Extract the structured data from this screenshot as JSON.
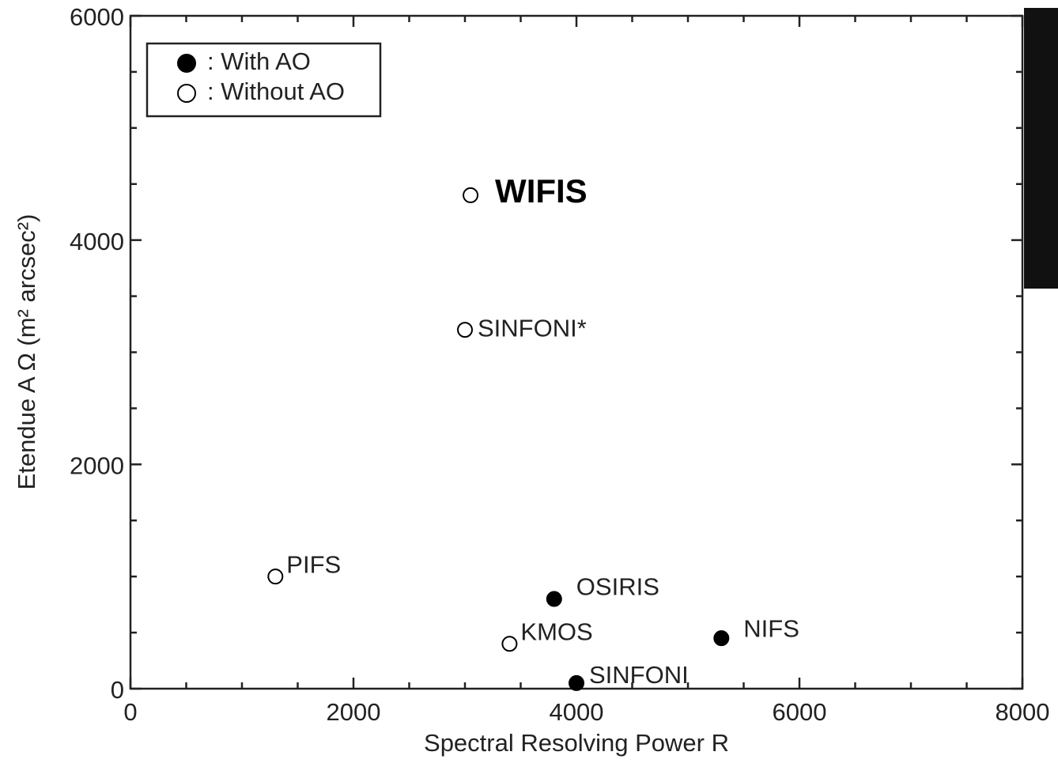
{
  "chart_data": {
    "type": "scatter",
    "x_label": "Spectral Resolving Power R",
    "y_label": "Etendue A Ω (m² arcsec²)",
    "xlim": [
      0,
      8000
    ],
    "ylim": [
      0,
      6000
    ],
    "xticks": [
      0,
      2000,
      4000,
      6000,
      8000
    ],
    "yticks": [
      0,
      2000,
      4000,
      6000
    ],
    "xminorticks": [
      500,
      1000,
      1500,
      2500,
      3000,
      3500,
      4500,
      5000,
      5500,
      6500,
      7000,
      7500
    ],
    "yminorticks": [
      500,
      1000,
      1500,
      2500,
      3000,
      3500,
      4500,
      5000,
      5500
    ],
    "legend": "upper left",
    "series": [
      {
        "name": ": With AO",
        "color": "#000000",
        "filled": true,
        "x": [
          3800,
          5300,
          4000
        ],
        "values": [
          800,
          450,
          50
        ],
        "labels": [
          "OSIRIS",
          "NIFS",
          "SINFONI"
        ],
        "label_bold": [
          false,
          false,
          false
        ]
      },
      {
        "name": ": Without AO",
        "color": "#000000",
        "filled": false,
        "x": [
          3050,
          3000,
          1300,
          3400
        ],
        "values": [
          4400,
          3200,
          1000,
          400
        ],
        "labels": [
          "WIFIS",
          "SINFONI*",
          "PIFS",
          "KMOS"
        ],
        "label_bold": [
          true,
          false,
          false,
          false
        ]
      }
    ]
  }
}
